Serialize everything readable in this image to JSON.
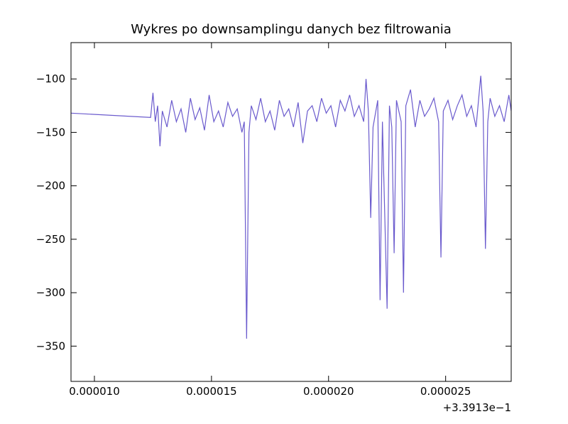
{
  "chart_data": {
    "type": "line",
    "title": "Wykres po downsamplingu danych bez filtrowania",
    "x_offset_label": "+3.3913e−1",
    "x": [
      9e-06,
      1.24e-05,
      1.25e-05,
      1.26e-05,
      1.27e-05,
      1.28e-05,
      1.29e-05,
      1.31e-05,
      1.33e-05,
      1.35e-05,
      1.37e-05,
      1.39e-05,
      1.41e-05,
      1.43e-05,
      1.45e-05,
      1.47e-05,
      1.49e-05,
      1.51e-05,
      1.53e-05,
      1.55e-05,
      1.57e-05,
      1.59e-05,
      1.61e-05,
      1.63e-05,
      1.64e-05,
      1.65e-05,
      1.66e-05,
      1.67e-05,
      1.69e-05,
      1.71e-05,
      1.73e-05,
      1.75e-05,
      1.77e-05,
      1.79e-05,
      1.81e-05,
      1.83e-05,
      1.85e-05,
      1.87e-05,
      1.89e-05,
      1.91e-05,
      1.93e-05,
      1.95e-05,
      1.97e-05,
      1.99e-05,
      2.01e-05,
      2.03e-05,
      2.05e-05,
      2.07e-05,
      2.09e-05,
      2.11e-05,
      2.13e-05,
      2.15e-05,
      2.16e-05,
      2.17e-05,
      2.18e-05,
      2.19e-05,
      2.21e-05,
      2.22e-05,
      2.23e-05,
      2.25e-05,
      2.26e-05,
      2.27e-05,
      2.28e-05,
      2.29e-05,
      2.31e-05,
      2.32e-05,
      2.33e-05,
      2.35e-05,
      2.37e-05,
      2.39e-05,
      2.41e-05,
      2.43e-05,
      2.45e-05,
      2.47e-05,
      2.48e-05,
      2.49e-05,
      2.51e-05,
      2.53e-05,
      2.55e-05,
      2.57e-05,
      2.59e-05,
      2.61e-05,
      2.63e-05,
      2.65e-05,
      2.66e-05,
      2.67e-05,
      2.68e-05,
      2.69e-05,
      2.71e-05,
      2.73e-05,
      2.75e-05,
      2.77e-05,
      2.78e-05
    ],
    "series": [
      {
        "color": "#6a5acd",
        "values": [
          -132,
          -136,
          -113,
          -140,
          -125,
          -163,
          -130,
          -145,
          -120,
          -140,
          -128,
          -150,
          -118,
          -138,
          -127,
          -148,
          -115,
          -140,
          -130,
          -145,
          -122,
          -135,
          -128,
          -150,
          -140,
          -343,
          -150,
          -125,
          -138,
          -118,
          -140,
          -130,
          -148,
          -120,
          -135,
          -128,
          -145,
          -122,
          -160,
          -130,
          -125,
          -140,
          -118,
          -132,
          -125,
          -145,
          -120,
          -130,
          -115,
          -135,
          -125,
          -140,
          -100,
          -130,
          -230,
          -145,
          -120,
          -307,
          -140,
          -315,
          -125,
          -145,
          -263,
          -120,
          -140,
          -300,
          -125,
          -110,
          -145,
          -120,
          -135,
          -128,
          -118,
          -140,
          -267,
          -130,
          -120,
          -138,
          -125,
          -115,
          -135,
          -125,
          -145,
          -97,
          -130,
          -259,
          -140,
          -118,
          -135,
          -125,
          -140,
          -115,
          -130
        ]
      }
    ],
    "xlim": [
      9e-06,
      2.78e-05
    ],
    "ylim": [
      -383,
      -66
    ],
    "xticks": [
      {
        "value": 1e-05,
        "label": "0.000010"
      },
      {
        "value": 1.5e-05,
        "label": "0.000015"
      },
      {
        "value": 2e-05,
        "label": "0.000020"
      },
      {
        "value": 2.5e-05,
        "label": "0.000025"
      }
    ],
    "yticks": [
      {
        "value": -350,
        "label": "−350"
      },
      {
        "value": -300,
        "label": "−300"
      },
      {
        "value": -250,
        "label": "−250"
      },
      {
        "value": -200,
        "label": "−200"
      },
      {
        "value": -150,
        "label": "−150"
      },
      {
        "value": -100,
        "label": "−100"
      }
    ]
  }
}
